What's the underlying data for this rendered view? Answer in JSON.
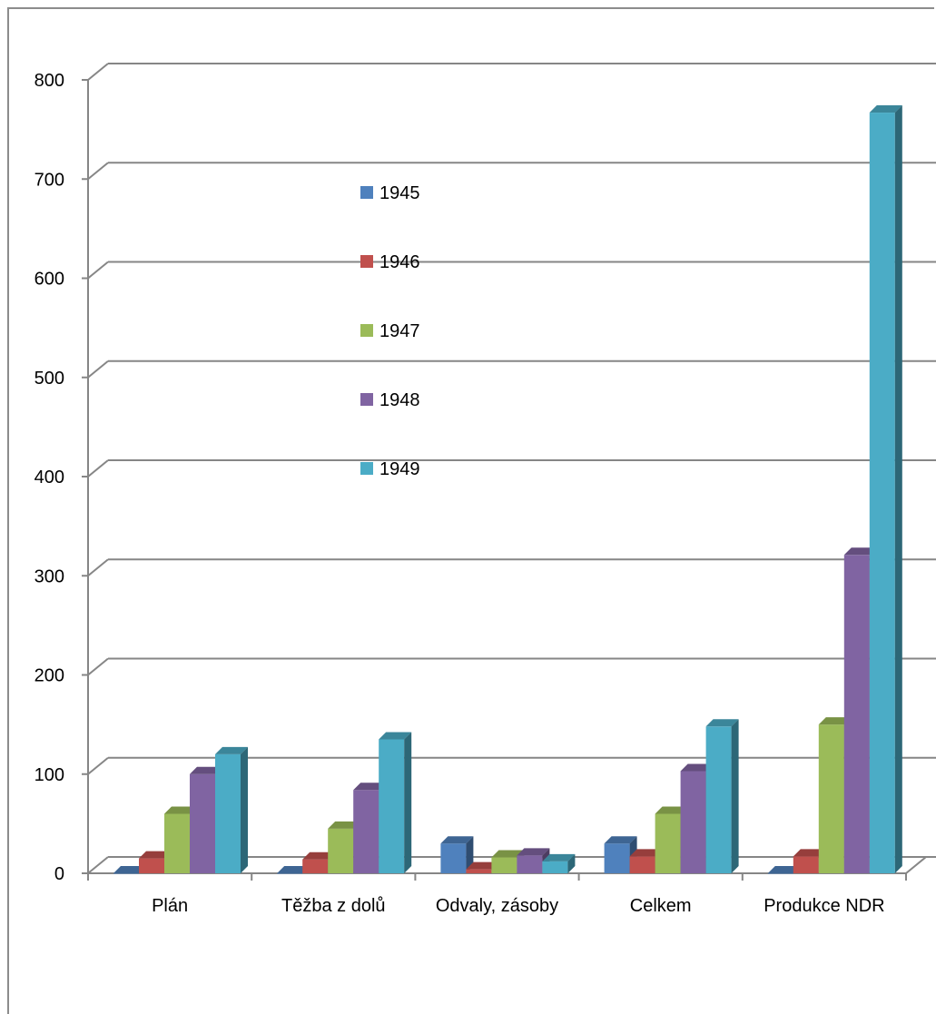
{
  "chart_data": {
    "type": "bar",
    "title": "",
    "xlabel": "",
    "ylabel": "",
    "ylim": [
      0,
      800
    ],
    "yticks": [
      "0",
      "100",
      "200",
      "300",
      "400",
      "500",
      "600",
      "700",
      "800"
    ],
    "categories": [
      "Plán",
      "Těžba z dolů",
      "Odvaly, zásoby",
      "Celkem",
      "Produkce NDR"
    ],
    "series": [
      {
        "name": "1945",
        "color": "#4F81BD",
        "values": [
          0,
          0,
          30,
          30,
          0
        ]
      },
      {
        "name": "1946",
        "color": "#C0504D",
        "values": [
          15,
          14,
          4,
          17,
          17
        ]
      },
      {
        "name": "1947",
        "color": "#9BBB59",
        "values": [
          60,
          45,
          16,
          60,
          150
        ]
      },
      {
        "name": "1948",
        "color": "#8064A2",
        "values": [
          100,
          84,
          18,
          103,
          321
        ]
      },
      {
        "name": "1949",
        "color": "#4BACC6",
        "values": [
          120,
          135,
          12,
          148,
          767
        ]
      }
    ],
    "grid": true,
    "legend": "inside-top-center",
    "style": "3d-clustered-column"
  }
}
